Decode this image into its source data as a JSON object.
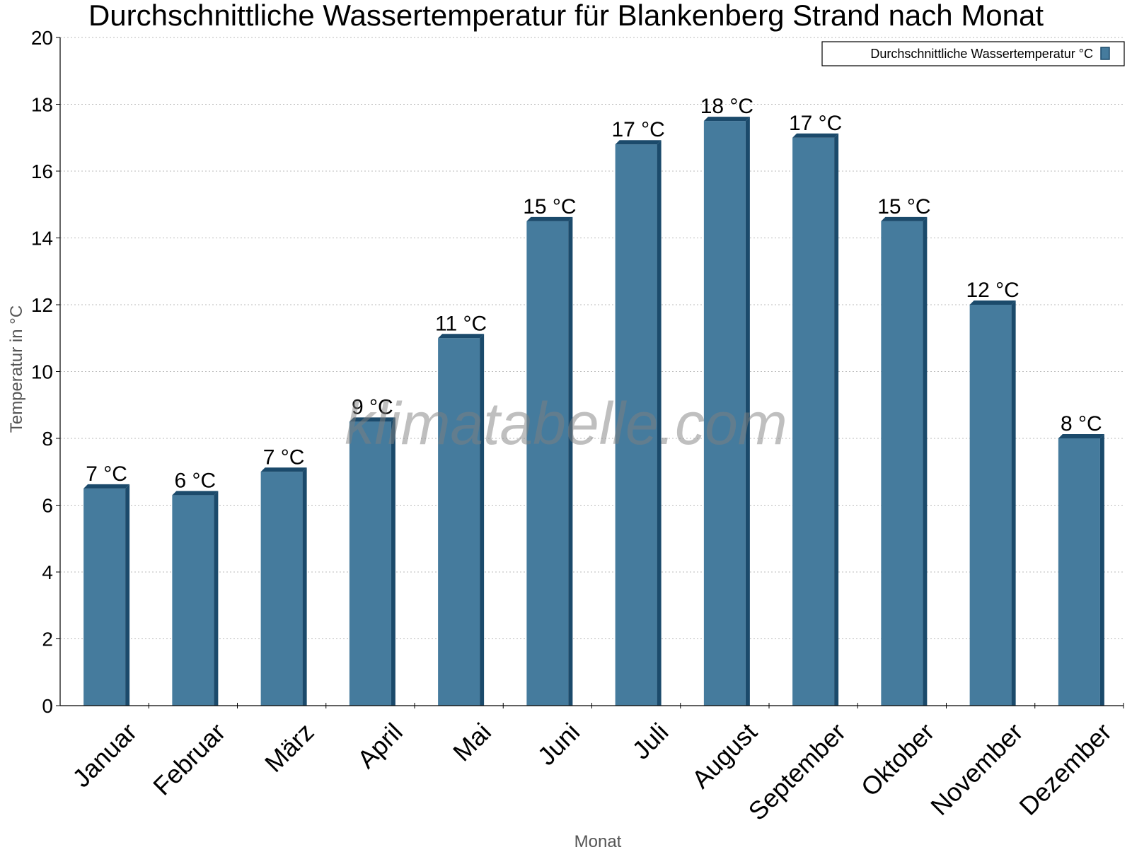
{
  "chart_data": {
    "type": "bar",
    "title": "Durchschnittliche Wassertemperatur für Blankenberg Strand nach Monat",
    "xlabel": "Monat",
    "ylabel": "Temperatur in °C",
    "ylim": [
      0,
      20
    ],
    "yticks": [
      "0",
      "2",
      "4",
      "6",
      "8",
      "10",
      "12",
      "14",
      "16",
      "18",
      "20"
    ],
    "grid": true,
    "legend_position": "top-right",
    "categories": [
      "Januar",
      "Februar",
      "März",
      "April",
      "Mai",
      "Juni",
      "Juli",
      "August",
      "September",
      "Oktober",
      "November",
      "Dezember"
    ],
    "series": [
      {
        "name": "Durchschnittliche Wassertemperatur °C",
        "values": [
          6.5,
          6.3,
          7.0,
          8.5,
          11.0,
          14.5,
          16.8,
          17.5,
          17.0,
          14.5,
          12.0,
          8.0
        ],
        "labels": [
          "7 °C",
          "6 °C",
          "7 °C",
          "9 °C",
          "11 °C",
          "15 °C",
          "17 °C",
          "18 °C",
          "17 °C",
          "15 °C",
          "12 °C",
          "8 °C"
        ],
        "color": "#457b9d",
        "edge_color": "#1b4a6b"
      }
    ]
  },
  "watermark": "klimatabelle.com"
}
